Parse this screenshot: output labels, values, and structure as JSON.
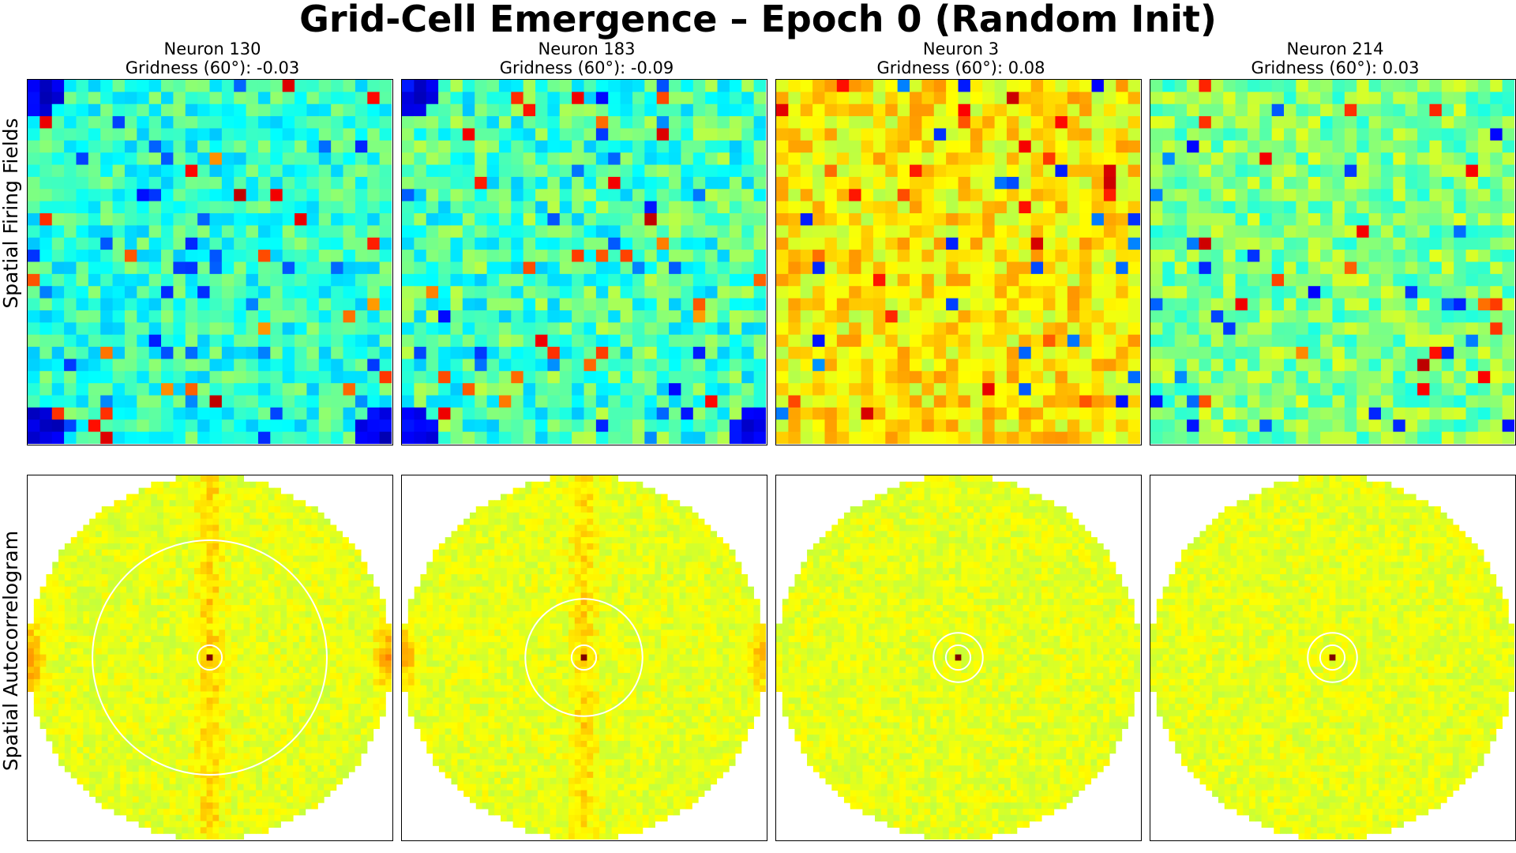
{
  "figure": {
    "title": "Grid-Cell Emergence – Epoch 0 (Random Init)",
    "row_labels": [
      "Spatial Firing Fields",
      "Spatial Autocorrelogram"
    ]
  },
  "chart_data": [
    {
      "type": "heatmap",
      "title": "Neuron 130",
      "subtitle": "Gridness (60°): -0.03",
      "neuron": 130,
      "gridness_60": -0.03,
      "row": "Spatial Firing Fields",
      "grid_size": [
        30,
        30
      ],
      "colormap": "jet",
      "rate_map": {
        "mean_level": 0.42,
        "noise_amplitude": 0.1,
        "outlier_fraction": 0.06,
        "low_edge_corners": [
          "top-left",
          "bottom-left",
          "bottom-right"
        ]
      }
    },
    {
      "type": "heatmap",
      "title": "Neuron 183",
      "subtitle": "Gridness (60°): -0.09",
      "neuron": 183,
      "gridness_60": -0.09,
      "row": "Spatial Firing Fields",
      "grid_size": [
        30,
        30
      ],
      "colormap": "jet",
      "rate_map": {
        "mean_level": 0.44,
        "noise_amplitude": 0.12,
        "outlier_fraction": 0.07,
        "low_edge_corners": [
          "top-left",
          "bottom-left",
          "bottom-right"
        ]
      }
    },
    {
      "type": "heatmap",
      "title": "Neuron 3",
      "subtitle": "Gridness (60°): 0.08",
      "neuron": 3,
      "gridness_60": 0.08,
      "row": "Spatial Firing Fields",
      "grid_size": [
        30,
        30
      ],
      "colormap": "jet",
      "rate_map": {
        "mean_level": 0.64,
        "noise_amplitude": 0.09,
        "outlier_fraction": 0.06,
        "low_edge_corners": []
      }
    },
    {
      "type": "heatmap",
      "title": "Neuron 214",
      "subtitle": "Gridness (60°): 0.03",
      "neuron": 214,
      "gridness_60": 0.03,
      "row": "Spatial Firing Fields",
      "grid_size": [
        30,
        30
      ],
      "colormap": "jet",
      "rate_map": {
        "mean_level": 0.5,
        "noise_amplitude": 0.1,
        "outlier_fraction": 0.06,
        "low_edge_corners": []
      }
    },
    {
      "type": "heatmap",
      "title": "Neuron 130 autocorrelogram",
      "neuron": 130,
      "row": "Spatial Autocorrelogram",
      "grid_size": [
        59,
        59
      ],
      "colormap": "jet",
      "mask": "circular",
      "base_level": 0.6,
      "noise_amplitude": 0.035,
      "central_peak": 1.0,
      "vertical_streak_strength": 0.08,
      "edge_lobe_strength": 0.12,
      "ring_radii_bins": [
        2,
        19
      ],
      "ring_color": "#ffffff"
    },
    {
      "type": "heatmap",
      "title": "Neuron 183 autocorrelogram",
      "neuron": 183,
      "row": "Spatial Autocorrelogram",
      "grid_size": [
        59,
        59
      ],
      "colormap": "jet",
      "mask": "circular",
      "base_level": 0.6,
      "noise_amplitude": 0.035,
      "central_peak": 1.0,
      "vertical_streak_strength": 0.07,
      "edge_lobe_strength": 0.09,
      "ring_radii_bins": [
        2,
        9.5
      ],
      "ring_color": "#ffffff"
    },
    {
      "type": "heatmap",
      "title": "Neuron 3 autocorrelogram",
      "neuron": 3,
      "row": "Spatial Autocorrelogram",
      "grid_size": [
        59,
        59
      ],
      "colormap": "jet",
      "mask": "circular",
      "base_level": 0.6,
      "noise_amplitude": 0.035,
      "central_peak": 1.0,
      "vertical_streak_strength": 0.0,
      "edge_lobe_strength": 0.0,
      "ring_radii_bins": [
        2,
        4
      ],
      "ring_color": "#ffffff"
    },
    {
      "type": "heatmap",
      "title": "Neuron 214 autocorrelogram",
      "neuron": 214,
      "row": "Spatial Autocorrelogram",
      "grid_size": [
        59,
        59
      ],
      "colormap": "jet",
      "mask": "circular",
      "base_level": 0.6,
      "noise_amplitude": 0.035,
      "central_peak": 1.0,
      "vertical_streak_strength": 0.0,
      "edge_lobe_strength": 0.0,
      "ring_radii_bins": [
        2,
        4
      ],
      "ring_color": "#ffffff"
    }
  ]
}
